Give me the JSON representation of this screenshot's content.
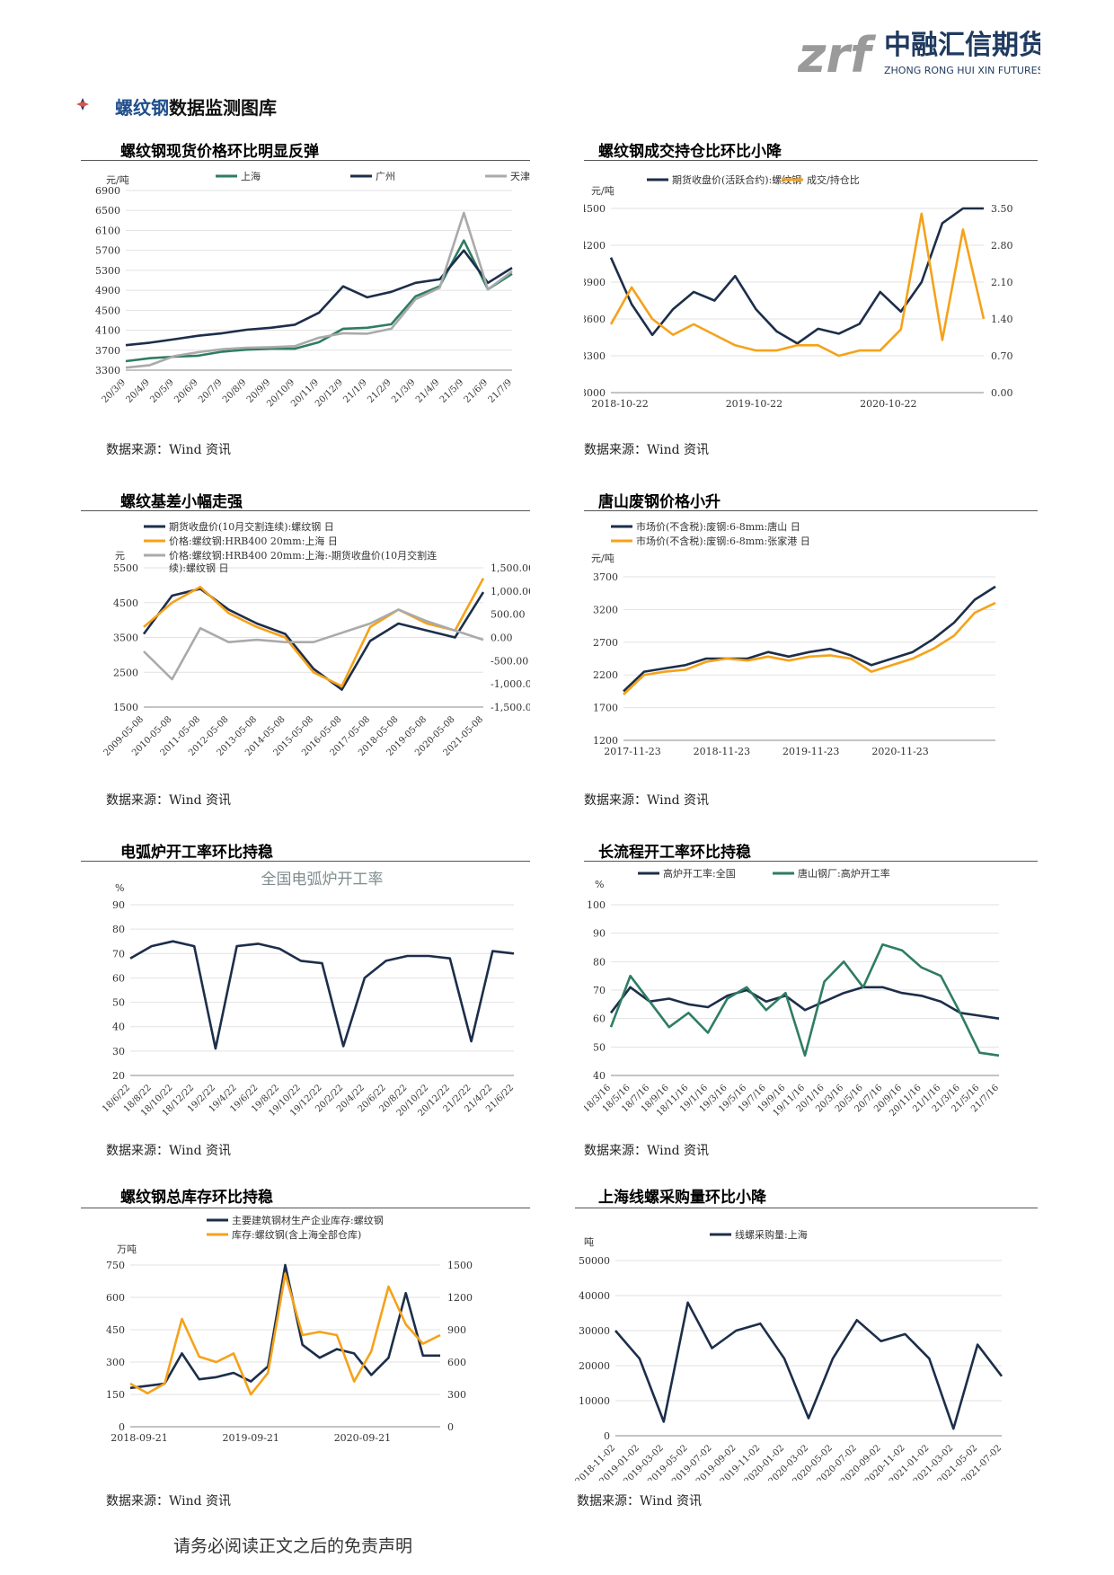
{
  "brand": {
    "short": "zrf",
    "cn": "中融汇信期货",
    "en": "ZHONG RONG HUI XIN FUTURES",
    "color": "#1f3a5f",
    "accent": "#9a9a9a"
  },
  "section": {
    "highlight": "螺纹钢",
    "rest": "数据监测图库"
  },
  "footer": "请务必阅读正文之后的免责声明",
  "charts": [
    {
      "title": "螺纹钢现货价格环比明显反弹",
      "source": "数据来源：Wind 资讯"
    },
    {
      "title": "螺纹钢成交持仓比环比小降",
      "source": "数据来源：Wind 资讯"
    },
    {
      "title": "螺纹基差小幅走强",
      "source": "数据来源：Wind 资讯"
    },
    {
      "title": "唐山废钢价格小升",
      "source": "数据来源：Wind 资讯"
    },
    {
      "title": "电弧炉开工率环比持稳",
      "source": "数据来源：Wind 资讯"
    },
    {
      "title": "长流程开工率环比持稳",
      "source": "数据来源：Wind 资讯"
    },
    {
      "title": "螺纹钢总库存环比持稳",
      "source": "数据来源：Wind 资讯"
    },
    {
      "title": "上海线螺采购量环比小降",
      "source": "数据来源：Wind 资讯"
    }
  ],
  "chart_data": [
    {
      "type": "line",
      "ylabel": "元/吨",
      "ylim": [
        3300,
        6900
      ],
      "yticks": [
        "6900",
        "6500",
        "6100",
        "5700",
        "5300",
        "4900",
        "4500",
        "4100",
        "3700",
        "3300"
      ],
      "categories": [
        "20/3/9",
        "20/4/9",
        "20/5/9",
        "20/6/9",
        "20/7/9",
        "20/8/9",
        "20/9/9",
        "20/10/9",
        "20/11/9",
        "20/12/9",
        "21/1/9",
        "21/2/9",
        "21/3/9",
        "21/4/9",
        "21/5/9",
        "21/6/9",
        "21/7/9"
      ],
      "series": [
        {
          "name": "上海",
          "color": "#2e7d62",
          "values": [
            3480,
            3540,
            3570,
            3590,
            3670,
            3710,
            3730,
            3730,
            3860,
            4130,
            4150,
            4220,
            4780,
            4980,
            5900,
            4920,
            5230
          ]
        },
        {
          "name": "广州",
          "color": "#1c2e4a",
          "values": [
            3800,
            3850,
            3920,
            3990,
            4040,
            4110,
            4150,
            4210,
            4450,
            4980,
            4760,
            4870,
            5050,
            5120,
            5700,
            5050,
            5350
          ]
        },
        {
          "name": "天津",
          "color": "#aaaaaa",
          "values": [
            3350,
            3400,
            3580,
            3660,
            3720,
            3750,
            3760,
            3780,
            3950,
            4040,
            4030,
            4130,
            4720,
            4950,
            6450,
            4920,
            5280
          ]
        }
      ]
    },
    {
      "type": "line",
      "ylabel": "元/吨",
      "ylim": [
        3000,
        4500
      ],
      "y2lim": [
        0,
        3.5
      ],
      "yticks": [
        "4500",
        "4200",
        "3900",
        "3600",
        "3300",
        "3000"
      ],
      "y2ticks": [
        "3.50",
        "2.80",
        "2.10",
        "1.40",
        "0.70",
        "0.00"
      ],
      "x_labels": [
        "2018-10-22",
        "2019-10-22",
        "2020-10-22"
      ],
      "series": [
        {
          "name": "期货收盘价(活跃合约):螺纹钢",
          "color": "#1c2e4a",
          "axis": "left",
          "values": [
            4100,
            3720,
            3470,
            3680,
            3820,
            3750,
            3950,
            3680,
            3500,
            3400,
            3520,
            3480,
            3560,
            3820,
            3660,
            3900,
            4380,
            4600,
            4500
          ]
        },
        {
          "name": "成交/持仓比",
          "color": "#f5a21a",
          "axis": "right",
          "values": [
            1.3,
            2.0,
            1.4,
            1.1,
            1.3,
            1.1,
            0.9,
            0.8,
            0.8,
            0.9,
            0.9,
            0.7,
            0.8,
            0.8,
            1.2,
            3.4,
            1.0,
            3.1,
            1.4
          ]
        }
      ]
    },
    {
      "type": "line",
      "ylabel": "元",
      "ylim": [
        1500,
        5500
      ],
      "y2lim": [
        -1500,
        1500
      ],
      "yticks": [
        "5500",
        "4500",
        "3500",
        "2500",
        "1500"
      ],
      "y2ticks": [
        "1,500.00",
        "1,000.00",
        "500.00",
        "0.00",
        "-500.00",
        "-1,000.00",
        "-1,500.00"
      ],
      "categories": [
        "2009-05-08",
        "2010-05-08",
        "2011-05-08",
        "2012-05-08",
        "2013-05-08",
        "2014-05-08",
        "2015-05-08",
        "2016-05-08",
        "2017-05-08",
        "2018-05-08",
        "2019-05-08",
        "2020-05-08",
        "2021-05-08"
      ],
      "legend_third": [
        "价格:螺纹钢:HRB400 20mm:上海:-期货收盘价(10月交割连",
        "续):螺纹钢 日"
      ],
      "series": [
        {
          "name": "期货收盘价(10月交割连续):螺纹钢 日",
          "color": "#1c2e4a",
          "axis": "left",
          "values": [
            3600,
            4700,
            4900,
            4300,
            3900,
            3600,
            2600,
            2000,
            3400,
            3900,
            3700,
            3500,
            4800
          ]
        },
        {
          "name": "价格:螺纹钢:HRB400 20mm:上海 日",
          "color": "#f5a21a",
          "axis": "left",
          "values": [
            3800,
            4500,
            4950,
            4200,
            3800,
            3500,
            2500,
            2100,
            3800,
            4300,
            3900,
            3700,
            5200
          ]
        },
        {
          "name": "价格:螺纹钢:HRB400 20mm:上海:-期货收盘价(10月交割连续):螺纹钢 日",
          "color": "#aaaaaa",
          "axis": "right",
          "values": [
            -300,
            -900,
            200,
            -100,
            -50,
            -100,
            -100,
            100,
            300,
            600,
            350,
            150,
            -50
          ]
        }
      ]
    },
    {
      "type": "line",
      "ylabel": "元/吨",
      "ylim": [
        1200,
        3700
      ],
      "yticks": [
        "3700",
        "3200",
        "2700",
        "2200",
        "1700",
        "1200"
      ],
      "x_labels": [
        "2017-11-23",
        "2018-11-23",
        "2019-11-23",
        "2020-11-23"
      ],
      "series": [
        {
          "name": "市场价(不含税):废钢:6-8mm:唐山 日",
          "color": "#1c2e4a",
          "values": [
            1950,
            2250,
            2300,
            2350,
            2450,
            2450,
            2450,
            2550,
            2480,
            2550,
            2600,
            2500,
            2350,
            2450,
            2550,
            2750,
            3000,
            3350,
            3550
          ]
        },
        {
          "name": "市场价(不含税):废钢:6-8mm:张家港 日",
          "color": "#f5a21a",
          "values": [
            1900,
            2200,
            2250,
            2280,
            2400,
            2450,
            2420,
            2480,
            2420,
            2480,
            2500,
            2450,
            2250,
            2350,
            2450,
            2600,
            2800,
            3150,
            3300
          ]
        }
      ]
    },
    {
      "type": "line",
      "title": "全国电弧炉开工率",
      "ylabel": "%",
      "ylim": [
        20,
        90
      ],
      "yticks": [
        "90",
        "80",
        "70",
        "60",
        "50",
        "40",
        "30",
        "20"
      ],
      "categories": [
        "18/6/22",
        "18/8/22",
        "18/10/22",
        "18/12/22",
        "19/2/22",
        "19/4/22",
        "19/6/22",
        "19/8/22",
        "19/10/22",
        "19/12/22",
        "20/2/22",
        "20/4/22",
        "20/6/22",
        "20/8/22",
        "20/10/22",
        "20/12/22",
        "21/2/22",
        "21/4/22",
        "21/6/22"
      ],
      "series": [
        {
          "name": "全国电弧炉开工率",
          "color": "#1c2e4a",
          "values": [
            68,
            73,
            75,
            73,
            31,
            73,
            74,
            72,
            67,
            66,
            32,
            60,
            67,
            69,
            69,
            68,
            34,
            71,
            70
          ]
        }
      ]
    },
    {
      "type": "line",
      "ylabel": "%",
      "ylim": [
        40,
        100
      ],
      "yticks": [
        "100",
        "90",
        "80",
        "70",
        "60",
        "50",
        "40"
      ],
      "categories": [
        "18/3/16",
        "18/5/16",
        "18/7/16",
        "18/9/16",
        "18/11/16",
        "19/1/16",
        "19/3/16",
        "19/5/16",
        "19/7/16",
        "19/9/16",
        "19/11/16",
        "20/1/16",
        "20/3/16",
        "20/5/16",
        "20/7/16",
        "20/9/16",
        "20/11/16",
        "21/1/16",
        "21/3/16",
        "21/5/16",
        "21/7/16"
      ],
      "series": [
        {
          "name": "高炉开工率:全国",
          "color": "#1c2e4a",
          "values": [
            62,
            71,
            66,
            67,
            65,
            64,
            68,
            70,
            66,
            68,
            63,
            66,
            69,
            71,
            71,
            69,
            68,
            66,
            62,
            61,
            60
          ]
        },
        {
          "name": "唐山钢厂:高炉开工率",
          "color": "#2e7d62",
          "values": [
            57,
            75,
            66,
            57,
            62,
            55,
            67,
            71,
            63,
            69,
            47,
            73,
            80,
            71,
            86,
            84,
            78,
            75,
            62,
            48,
            47
          ]
        }
      ]
    },
    {
      "type": "line",
      "ylabel": "万吨",
      "ylim": [
        0,
        750
      ],
      "y2lim": [
        0,
        1500
      ],
      "yticks": [
        "750",
        "600",
        "450",
        "300",
        "150",
        "0"
      ],
      "y2ticks": [
        "1500",
        "1200",
        "900",
        "600",
        "300",
        "0"
      ],
      "x_labels": [
        "2018-09-21",
        "2019-09-21",
        "2020-09-21"
      ],
      "series": [
        {
          "name": "主要建筑钢材生产企业库存:螺纹钢",
          "color": "#1c2e4a",
          "axis": "left",
          "values": [
            180,
            190,
            200,
            340,
            220,
            230,
            250,
            210,
            280,
            760,
            380,
            320,
            360,
            340,
            240,
            320,
            620,
            330,
            330
          ]
        },
        {
          "name": "库存:螺纹钢(含上海全部仓库)",
          "color": "#f5a21a",
          "axis": "right",
          "values": [
            400,
            310,
            400,
            1000,
            650,
            600,
            680,
            300,
            500,
            1420,
            850,
            880,
            850,
            420,
            700,
            1300,
            950,
            770,
            850
          ]
        }
      ]
    },
    {
      "type": "line",
      "ylabel": "吨",
      "ylim": [
        0,
        50000
      ],
      "yticks": [
        "50000",
        "40000",
        "30000",
        "20000",
        "10000",
        "0"
      ],
      "categories": [
        "2018-11-02",
        "2019-01-02",
        "2019-03-02",
        "2019-05-02",
        "2019-07-02",
        "2019-09-02",
        "2019-11-02",
        "2020-01-02",
        "2020-03-02",
        "2020-05-02",
        "2020-07-02",
        "2020-09-02",
        "2020-11-02",
        "2021-01-02",
        "2021-03-02",
        "2021-05-02",
        "2021-07-02"
      ],
      "series": [
        {
          "name": "线螺采购量:上海",
          "color": "#1c2e4a",
          "values": [
            30000,
            22000,
            4000,
            38000,
            25000,
            30000,
            32000,
            22000,
            5000,
            22000,
            33000,
            27000,
            29000,
            22000,
            2000,
            26000,
            17000
          ]
        }
      ]
    }
  ]
}
